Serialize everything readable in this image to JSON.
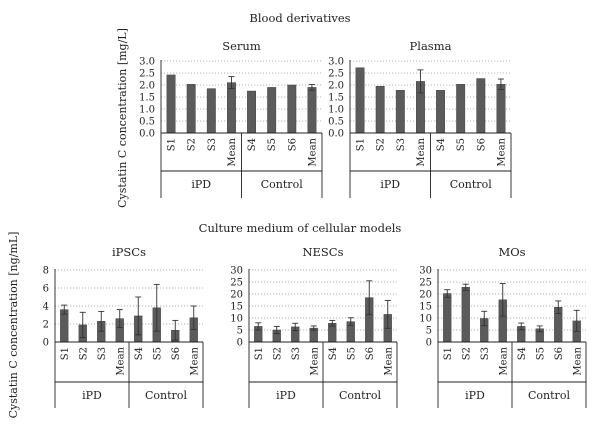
{
  "sections": [
    {
      "title": "Blood derivatives"
    },
    {
      "title": "Culture medium of cellular models"
    }
  ],
  "ylabels": [
    "Cystatin C concentration [mg/L]",
    "Cystatin C concentration [ng/mL]"
  ],
  "chart_data": [
    {
      "type": "bar",
      "title": "Serum",
      "ylabel": "Cystatin C concentration [mg/L]",
      "ylim": [
        0,
        3.0
      ],
      "yticks": [
        "0.0",
        "0.5",
        "1.0",
        "1.5",
        "2.0",
        "2.5",
        "3.0"
      ],
      "grid": true,
      "categories": [
        "S1",
        "S2",
        "S3",
        "Mean",
        "S4",
        "S5",
        "S6",
        "Mean"
      ],
      "groups": [
        {
          "label": "iPD",
          "count": 4
        },
        {
          "label": "Control",
          "count": 4
        }
      ],
      "values": [
        2.42,
        2.03,
        1.85,
        2.1,
        1.75,
        1.9,
        2.0,
        1.9
      ],
      "errors": [
        0,
        0,
        0,
        0.25,
        0,
        0,
        0,
        0.12
      ]
    },
    {
      "type": "bar",
      "title": "Plasma",
      "ylabel": "",
      "ylim": [
        0,
        3.0
      ],
      "yticks": [
        "0.0",
        "0.5",
        "1.0",
        "1.5",
        "2.0",
        "2.5",
        "3.0"
      ],
      "grid": true,
      "categories": [
        "S1",
        "S2",
        "S3",
        "Mean",
        "S4",
        "S5",
        "S6",
        "Mean"
      ],
      "groups": [
        {
          "label": "iPD",
          "count": 4
        },
        {
          "label": "Control",
          "count": 4
        }
      ],
      "values": [
        2.72,
        1.95,
        1.78,
        2.15,
        1.78,
        2.03,
        2.27,
        2.03
      ],
      "errors": [
        0,
        0,
        0,
        0.48,
        0,
        0,
        0,
        0.22
      ]
    },
    {
      "type": "bar",
      "title": "iPSCs",
      "ylabel": "Cystatin C concentration [ng/mL]",
      "ylim": [
        0,
        8
      ],
      "yticks": [
        "0",
        "2",
        "4",
        "6",
        "8"
      ],
      "grid": true,
      "categories": [
        "S1",
        "S2",
        "S3",
        "Mean",
        "S4",
        "S5",
        "S6",
        "Mean"
      ],
      "groups": [
        {
          "label": "iPD",
          "count": 4
        },
        {
          "label": "Control",
          "count": 4
        }
      ],
      "values": [
        3.6,
        1.9,
        2.3,
        2.6,
        2.9,
        3.8,
        1.3,
        2.7
      ],
      "errors": [
        0.5,
        1.4,
        1.1,
        1.0,
        2.1,
        2.6,
        1.1,
        1.3
      ]
    },
    {
      "type": "bar",
      "title": "NESCs",
      "ylabel": "",
      "ylim": [
        0,
        30
      ],
      "yticks": [
        "0",
        "5",
        "10",
        "15",
        "20",
        "25",
        "30"
      ],
      "grid": true,
      "categories": [
        "S1",
        "S2",
        "S3",
        "Mean",
        "S4",
        "S5",
        "S6",
        "Mean"
      ],
      "groups": [
        {
          "label": "iPD",
          "count": 4
        },
        {
          "label": "Control",
          "count": 4
        }
      ],
      "values": [
        6.5,
        5.0,
        6.3,
        5.8,
        7.8,
        8.5,
        18.5,
        11.5
      ],
      "errors": [
        1.5,
        1.5,
        1.5,
        0.9,
        1.2,
        1.6,
        7.0,
        5.8
      ]
    },
    {
      "type": "bar",
      "title": "MOs",
      "ylabel": "",
      "ylim": [
        0,
        30
      ],
      "yticks": [
        "0",
        "5",
        "10",
        "15",
        "20",
        "25",
        "30"
      ],
      "grid": true,
      "categories": [
        "S1",
        "S2",
        "S3",
        "Mean",
        "S4",
        "S5",
        "S6",
        "Mean"
      ],
      "groups": [
        {
          "label": "iPD",
          "count": 4
        },
        {
          "label": "Control",
          "count": 4
        }
      ],
      "values": [
        20.2,
        22.8,
        9.8,
        17.6,
        6.5,
        5.5,
        14.5,
        8.8
      ],
      "errors": [
        1.6,
        1.3,
        3.0,
        6.8,
        1.4,
        1.2,
        2.6,
        4.4
      ]
    }
  ]
}
